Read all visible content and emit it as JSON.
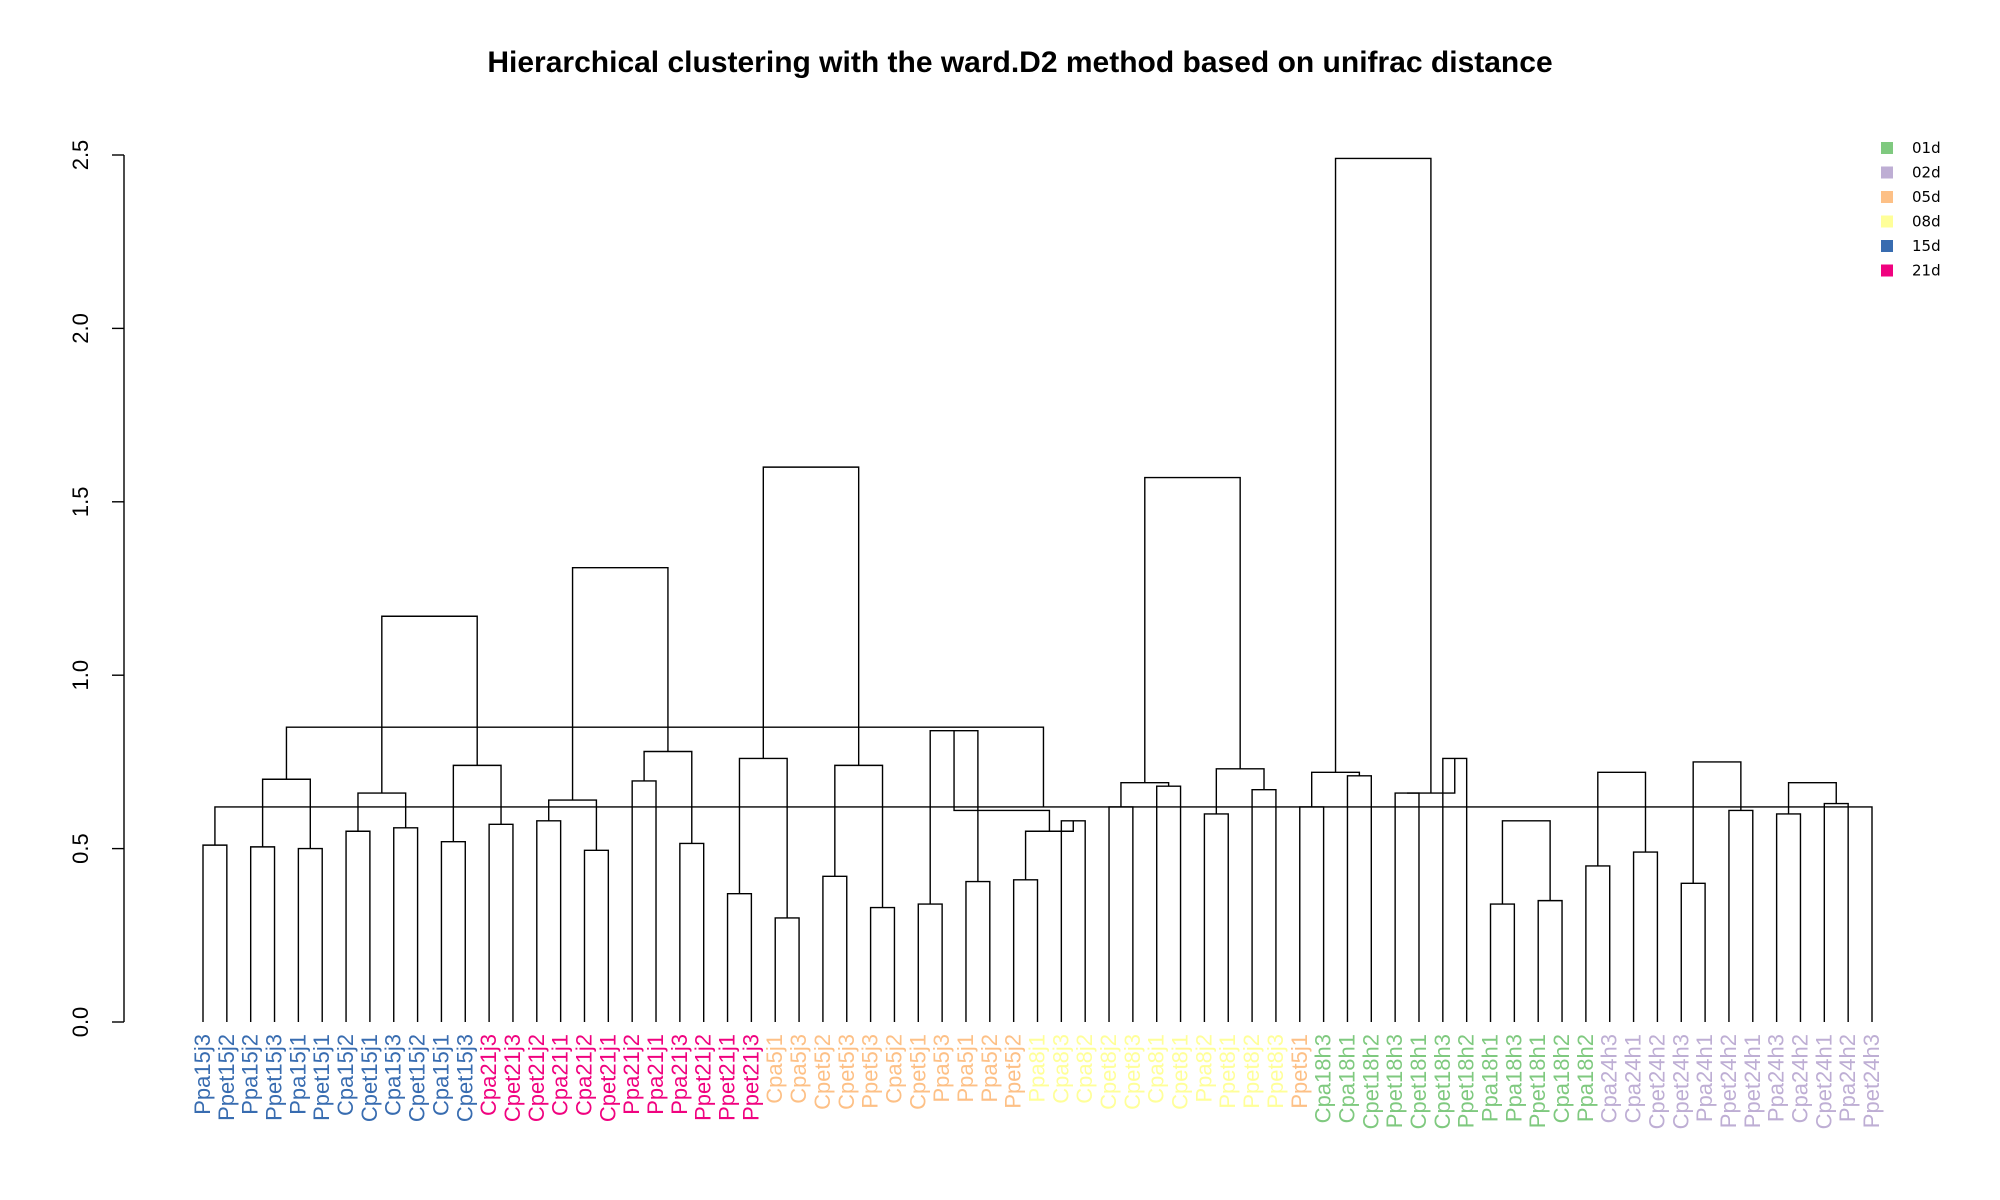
{
  "chart_data": {
    "type": "dendrogram",
    "title": "Hierarchical clustering with the ward.D2 method based on unifrac distance",
    "xlabel": "",
    "ylabel": "",
    "ylim": [
      0,
      2.5
    ],
    "yticks": [
      "0.0",
      "0.5",
      "1.0",
      "1.5",
      "2.0",
      "2.5"
    ],
    "legend": {
      "position": "top-right",
      "entries": [
        {
          "label": "01d",
          "color": "#7fc97f"
        },
        {
          "label": "02d",
          "color": "#beaed4"
        },
        {
          "label": "05d",
          "color": "#fdc086"
        },
        {
          "label": "08d",
          "color": "#ffff99"
        },
        {
          "label": "15d",
          "color": "#386cb0"
        },
        {
          "label": "21d",
          "color": "#f0027f"
        }
      ]
    },
    "leaves": [
      {
        "label": "Ppa15j3",
        "group": "15d"
      },
      {
        "label": "Ppet15j2",
        "group": "15d"
      },
      {
        "label": "Ppa15j2",
        "group": "15d"
      },
      {
        "label": "Ppet15j3",
        "group": "15d"
      },
      {
        "label": "Ppa15j1",
        "group": "15d"
      },
      {
        "label": "Ppet15j1",
        "group": "15d"
      },
      {
        "label": "Cpa15j2",
        "group": "15d"
      },
      {
        "label": "Cpet15j1",
        "group": "15d"
      },
      {
        "label": "Cpa15j3",
        "group": "15d"
      },
      {
        "label": "Cpet15j2",
        "group": "15d"
      },
      {
        "label": "Cpa15j1",
        "group": "15d"
      },
      {
        "label": "Cpet15j3",
        "group": "15d"
      },
      {
        "label": "Cpa21j3",
        "group": "21d"
      },
      {
        "label": "Cpet21j3",
        "group": "21d"
      },
      {
        "label": "Cpet21j2",
        "group": "21d"
      },
      {
        "label": "Cpa21j1",
        "group": "21d"
      },
      {
        "label": "Cpa21j2",
        "group": "21d"
      },
      {
        "label": "Cpet21j1",
        "group": "21d"
      },
      {
        "label": "Ppa21j2",
        "group": "21d"
      },
      {
        "label": "Ppa21j1",
        "group": "21d"
      },
      {
        "label": "Ppa21j3",
        "group": "21d"
      },
      {
        "label": "Ppet21j2",
        "group": "21d"
      },
      {
        "label": "Ppet21j1",
        "group": "21d"
      },
      {
        "label": "Ppet21j3",
        "group": "21d"
      },
      {
        "label": "Cpa5j1",
        "group": "05d"
      },
      {
        "label": "Cpa5j3",
        "group": "05d"
      },
      {
        "label": "Cpet5j2",
        "group": "05d"
      },
      {
        "label": "Cpet5j3",
        "group": "05d"
      },
      {
        "label": "Ppet5j3",
        "group": "05d"
      },
      {
        "label": "Cpa5j2",
        "group": "05d"
      },
      {
        "label": "Cpet5j1",
        "group": "05d"
      },
      {
        "label": "Ppa5j3",
        "group": "05d"
      },
      {
        "label": "Ppa5j1",
        "group": "05d"
      },
      {
        "label": "Ppa5j2",
        "group": "05d"
      },
      {
        "label": "Ppet5j2",
        "group": "05d"
      },
      {
        "label": "Ppa8j1",
        "group": "08d"
      },
      {
        "label": "Cpa8j3",
        "group": "08d"
      },
      {
        "label": "Cpa8j2",
        "group": "08d"
      },
      {
        "label": "Cpet8j2",
        "group": "08d"
      },
      {
        "label": "Cpet8j3",
        "group": "08d"
      },
      {
        "label": "Cpa8j1",
        "group": "08d"
      },
      {
        "label": "Cpet8j1",
        "group": "08d"
      },
      {
        "label": "Ppa8j2",
        "group": "08d"
      },
      {
        "label": "Ppet8j1",
        "group": "08d"
      },
      {
        "label": "Ppet8j2",
        "group": "08d"
      },
      {
        "label": "Ppet8j3",
        "group": "08d"
      },
      {
        "label": "Ppet5j1",
        "group": "05d"
      },
      {
        "label": "Cpa18h3",
        "group": "01d"
      },
      {
        "label": "Cpa18h1",
        "group": "01d"
      },
      {
        "label": "Cpet18h2",
        "group": "01d"
      },
      {
        "label": "Ppet18h3",
        "group": "01d"
      },
      {
        "label": "Cpet18h1",
        "group": "01d"
      },
      {
        "label": "Cpet18h3",
        "group": "01d"
      },
      {
        "label": "Ppet18h2",
        "group": "01d"
      },
      {
        "label": "Ppa18h1",
        "group": "01d"
      },
      {
        "label": "Ppa18h3",
        "group": "01d"
      },
      {
        "label": "Ppet18h1",
        "group": "01d"
      },
      {
        "label": "Cpa18h2",
        "group": "01d"
      },
      {
        "label": "Ppa18h2",
        "group": "01d"
      },
      {
        "label": "Cpa24h3",
        "group": "02d"
      },
      {
        "label": "Cpa24h1",
        "group": "02d"
      },
      {
        "label": "Cpet24h2",
        "group": "02d"
      },
      {
        "label": "Cpet24h3",
        "group": "02d"
      },
      {
        "label": "Ppa24h1",
        "group": "02d"
      },
      {
        "label": "Ppet24h2",
        "group": "02d"
      },
      {
        "label": "Ppet24h1",
        "group": "02d"
      },
      {
        "label": "Ppa24h3",
        "group": "02d"
      },
      {
        "label": "Cpa24h2",
        "group": "02d"
      },
      {
        "label": "Cpet24h1",
        "group": "02d"
      },
      {
        "label": "Ppa24h2",
        "group": "02d"
      },
      {
        "label": "Ppet24h3",
        "group": "02d"
      }
    ],
    "merges": [
      [
        0,
        1,
        0.51
      ],
      [
        2,
        3,
        0.505
      ],
      [
        4,
        5,
        0.5
      ],
      [
        6,
        7,
        0.55
      ],
      [
        8,
        9,
        0.56
      ],
      [
        10,
        11,
        0.52
      ],
      [
        12,
        13,
        0.57
      ],
      [
        14,
        15,
        0.58
      ],
      [
        16,
        17,
        0.495
      ],
      [
        18,
        19,
        0.695
      ],
      [
        20,
        21,
        0.515
      ],
      [
        22,
        23,
        0.37
      ],
      [
        24,
        25,
        0.3
      ],
      [
        26,
        27,
        0.42
      ],
      [
        28,
        29,
        0.33
      ],
      [
        30,
        31,
        0.34
      ],
      [
        32,
        33,
        0.405
      ],
      [
        34,
        35,
        0.41
      ],
      [
        36,
        37,
        0.58
      ],
      [
        38,
        39,
        0.62
      ],
      [
        40,
        41,
        0.68
      ],
      [
        42,
        43,
        0.6
      ],
      [
        44,
        45,
        0.67
      ],
      [
        46,
        47,
        0.62
      ],
      [
        48,
        49,
        0.71
      ],
      [
        50,
        51,
        0.66
      ],
      [
        52,
        53,
        0.76
      ],
      [
        54,
        55,
        0.34
      ],
      [
        56,
        57,
        0.35
      ],
      [
        58,
        59,
        0.45
      ],
      [
        60,
        61,
        0.49
      ],
      [
        62,
        63,
        0.4
      ],
      [
        64,
        65,
        0.61
      ],
      [
        66,
        67,
        0.6
      ],
      [
        68,
        69,
        0.63
      ],
      [
        70,
        71,
        0.62
      ],
      [
        72,
        73,
        0.7
      ],
      [
        74,
        75,
        0.66
      ],
      [
        76,
        77,
        0.74
      ],
      [
        78,
        79,
        0.64
      ],
      [
        80,
        81,
        0.78
      ],
      [
        82,
        83,
        0.76
      ],
      [
        84,
        85,
        0.74
      ],
      [
        86,
        87,
        0.84
      ],
      [
        88,
        89,
        0.55
      ],
      [
        90,
        91,
        0.69
      ],
      [
        92,
        93,
        0.73
      ],
      [
        94,
        95,
        0.72
      ],
      [
        96,
        97,
        0.66
      ],
      [
        98,
        99,
        0.58
      ],
      [
        100,
        101,
        0.72
      ],
      [
        102,
        103,
        0.75
      ],
      [
        104,
        105,
        0.69
      ],
      [
        106,
        107,
        0.85
      ],
      [
        108,
        109,
        1.17
      ],
      [
        110,
        111,
        1.31
      ],
      [
        112,
        113,
        1.6
      ],
      [
        114,
        115,
        0.61
      ],
      [
        116,
        117,
        1.57
      ],
      [
        118,
        119,
        2.49
      ]
    ]
  }
}
